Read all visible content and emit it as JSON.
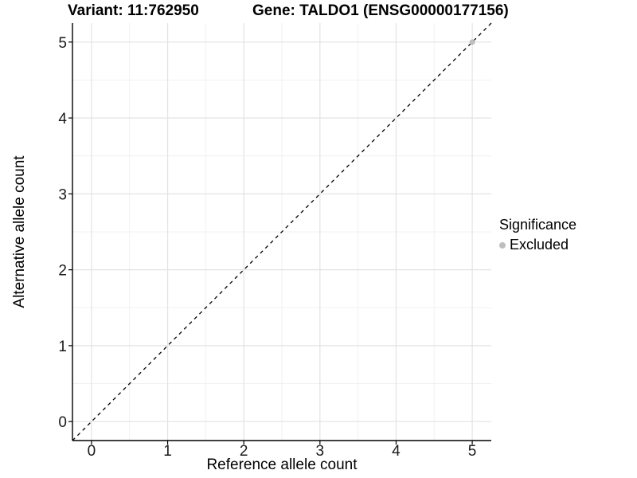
{
  "chart_data": {
    "type": "scatter",
    "titles": {
      "left": "Variant: 11:762950",
      "right": "Gene: TALDO1 (ENSG00000177156)"
    },
    "xlabel": "Reference allele count",
    "ylabel": "Alternative allele count",
    "xlim": [
      -0.25,
      5.25
    ],
    "ylim": [
      -0.25,
      5.25
    ],
    "xticks": [
      0,
      1,
      2,
      3,
      4,
      5
    ],
    "yticks": [
      0,
      1,
      2,
      3,
      4,
      5
    ],
    "minor_breaks": [
      0.5,
      1.5,
      2.5,
      3.5,
      4.5
    ],
    "grid": "major-and-minor",
    "points": [
      {
        "x": 5,
        "y": 5,
        "series": "Excluded"
      }
    ],
    "reference_line": {
      "kind": "identity",
      "style": "dashed",
      "color": "#000000"
    },
    "legend": {
      "title": "Significance",
      "position": "right",
      "items": [
        {
          "label": "Excluded",
          "color": "#bebebe"
        }
      ]
    },
    "colors": {
      "background": "#ffffff",
      "grid_major": "#e3e3e3",
      "grid_minor": "#f0f0f0",
      "axis_line": "#000000",
      "tick_label": "#1a1a1a",
      "point": "#bebebe"
    }
  }
}
